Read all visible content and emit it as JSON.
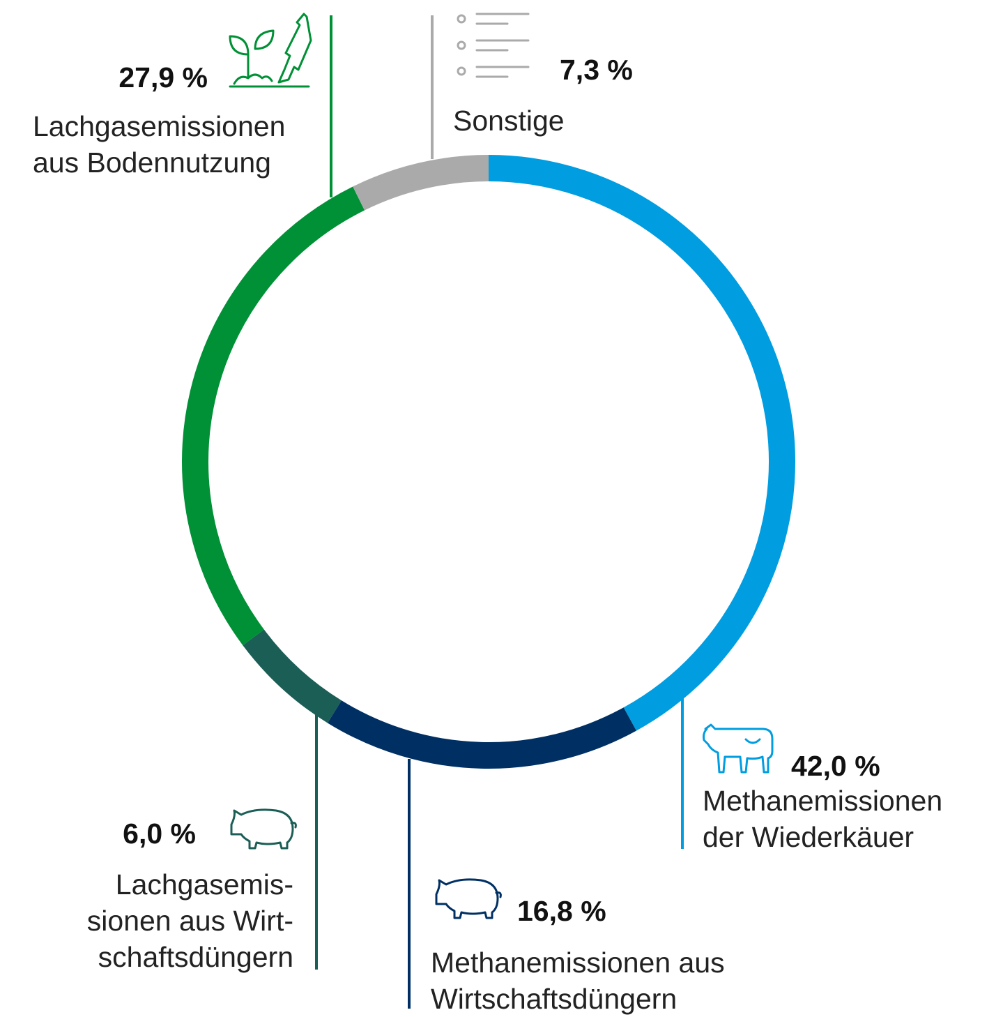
{
  "chart_data": {
    "type": "pie",
    "categories": [
      "Methanemissionen\nder Wiederkäuer",
      "Methanemissionen aus\nWirtschaftsdüngern",
      "Lachgasemis-\nsionen aus Wirt-\nschaftsdüngern",
      "Lachgasemissionen\naus Bodennutzung",
      "Sonstige"
    ],
    "values": [
      42.0,
      16.8,
      6.0,
      27.9,
      7.3
    ],
    "value_labels": [
      "42,0 %",
      "16,8 %",
      "6,0 %",
      "27,9 %",
      "7,3 %"
    ],
    "colors": [
      "#009de0",
      "#003063",
      "#1b5e55",
      "#009035",
      "#aaaaaa"
    ]
  }
}
